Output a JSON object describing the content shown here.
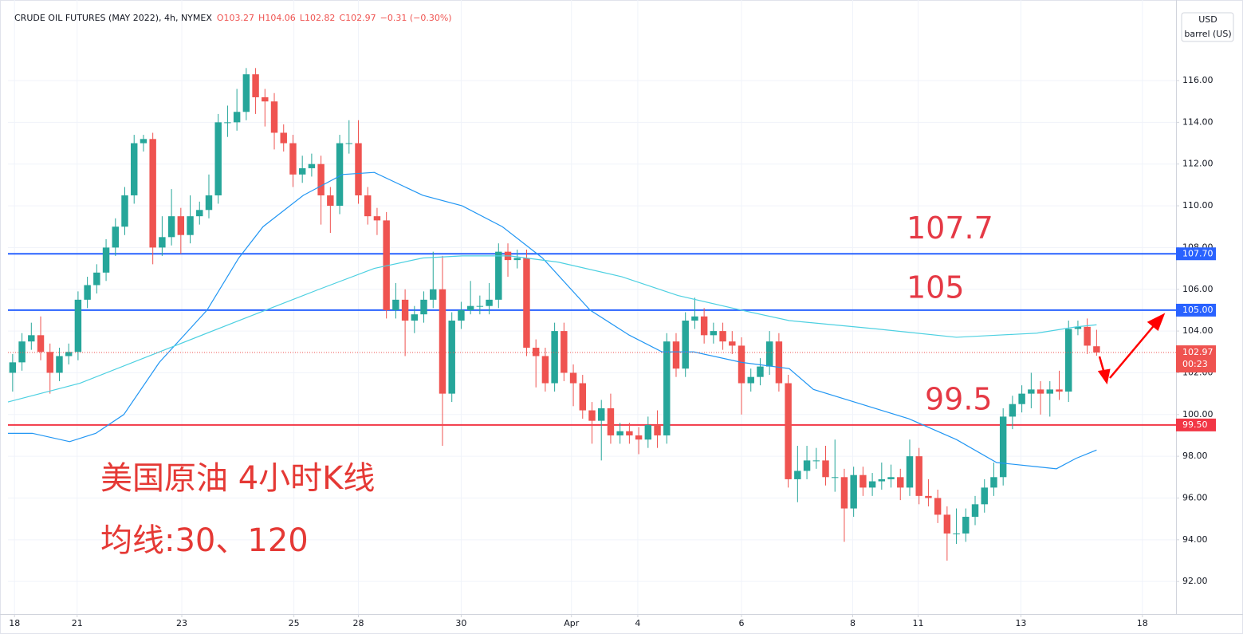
{
  "chart_data": {
    "type": "candlestick",
    "title": "CRUDE OIL FUTURES (MAY 2022), 4h, NYMEX",
    "quote": [
      "O103.27",
      "H104.06",
      "L102.82",
      "C102.97",
      "−0.31 (−0.30%)"
    ],
    "currency": "USD",
    "unit": "barrel (US)",
    "up_color": "#26a69a",
    "down_color": "#ef5350",
    "open": [
      102,
      102.5,
      103.5,
      103.8,
      103,
      102,
      102.8,
      103,
      105.5,
      106.2,
      106.8,
      108,
      109,
      110.5,
      113,
      113.2,
      108,
      108.5,
      109.5,
      108.6,
      109.5,
      109.8,
      110.5,
      114,
      114,
      114.5,
      116.3,
      115.2,
      115,
      113.5,
      113,
      111.5,
      111.8,
      112,
      110.5,
      110,
      113,
      113,
      110.5,
      109.5,
      109.3,
      105,
      105.5,
      104.5,
      104.8,
      105.5,
      106,
      101,
      104.5,
      105,
      105.2,
      105.2,
      105.5,
      107.8,
      107.4,
      107.5,
      103.2,
      102.8,
      101.5,
      104,
      102,
      101.5,
      100.2,
      99.7,
      100.3,
      99,
      99.2,
      99,
      98.8,
      99.5,
      99,
      103.5,
      102.2,
      104.5,
      104.7,
      103.8,
      104,
      103.5,
      103.3,
      101.5,
      101.8,
      102.3,
      103.5,
      101.5,
      96.9,
      97.3,
      97.8,
      97.8,
      97,
      97,
      95.5,
      97.1,
      96.5,
      96.8,
      96.9,
      97,
      96.5,
      98,
      96.1,
      96,
      95.2,
      94.3,
      94.3,
      95.1,
      95.7,
      96.5,
      97,
      99.9,
      100.5,
      101,
      101.2,
      101,
      101.2,
      101.1,
      104.1,
      104.2,
      103.27
    ],
    "high": [
      102.9,
      103.9,
      104.4,
      104.7,
      103.4,
      103.2,
      103.4,
      105.9,
      106.6,
      107.2,
      108.4,
      109.4,
      110.9,
      113.4,
      113.4,
      113.5,
      109.5,
      110.8,
      109.9,
      110.5,
      110.2,
      111.5,
      114.4,
      114.8,
      115.6,
      116.6,
      116.6,
      115.6,
      115.4,
      113.9,
      113.4,
      112.4,
      112.5,
      112.4,
      110.9,
      113.4,
      114.1,
      114.1,
      110.9,
      109.9,
      109.7,
      106.3,
      106.0,
      105.2,
      105.9,
      107.8,
      107.6,
      104.9,
      105.4,
      106.4,
      105.7,
      106.3,
      108.2,
      108.2,
      107.9,
      107.9,
      103.6,
      103.2,
      104.4,
      104.4,
      102.4,
      101.9,
      100.6,
      100.7,
      101.0,
      99.6,
      99.6,
      99.4,
      99.9,
      100.2,
      103.9,
      103.9,
      104.9,
      105.6,
      105.1,
      104.4,
      104.4,
      104.0,
      103.7,
      102.2,
      102.7,
      104.0,
      103.9,
      101.9,
      98.5,
      98.5,
      98.4,
      98.5,
      98.8,
      97.4,
      97.5,
      97.5,
      97.2,
      97.7,
      97.6,
      97.4,
      98.8,
      98.4,
      96.9,
      96.4,
      95.6,
      95.5,
      95.5,
      96.1,
      96.9,
      97.7,
      100.3,
      100.9,
      101.4,
      102.0,
      101.6,
      101.6,
      102.1,
      104.5,
      104.5,
      104.6,
      104.06
    ],
    "low": [
      101.1,
      102.1,
      103.1,
      102.6,
      101.0,
      101.6,
      102.4,
      102.6,
      105.1,
      105.8,
      106.4,
      107.6,
      108.6,
      110.1,
      112.6,
      107.2,
      107.6,
      108.1,
      107.7,
      108.2,
      109.1,
      109.4,
      110.1,
      113.3,
      113.6,
      114.1,
      114.4,
      113.8,
      112.7,
      112.6,
      110.9,
      111.1,
      111.4,
      109.1,
      108.7,
      109.6,
      112.5,
      110.1,
      109.1,
      108.6,
      104.6,
      104.6,
      102.8,
      103.9,
      104.4,
      105.1,
      98.5,
      100.6,
      104.1,
      104.8,
      104.8,
      104.8,
      105.1,
      106.6,
      107.0,
      102.8,
      101.3,
      101.1,
      101.1,
      101.6,
      100.4,
      99.8,
      98.6,
      97.8,
      98.6,
      98.6,
      98.6,
      98.1,
      98.4,
      98.4,
      98.6,
      101.8,
      101.8,
      104.1,
      103.4,
      103.4,
      103.1,
      102.9,
      100.0,
      101.1,
      101.4,
      101.9,
      101.1,
      96.5,
      95.8,
      96.9,
      97.4,
      96.6,
      96.3,
      93.9,
      95.1,
      96.1,
      96.1,
      96.4,
      96.5,
      95.9,
      96.1,
      95.7,
      95.6,
      94.8,
      93.0,
      93.8,
      93.9,
      94.7,
      95.3,
      96.1,
      96.6,
      99.3,
      100.1,
      100.3,
      100.0,
      99.9,
      100.7,
      100.6,
      103.8,
      102.9,
      102.82
    ],
    "close": [
      102.5,
      103.5,
      103.8,
      103,
      102,
      102.8,
      103,
      105.5,
      106.2,
      106.8,
      108,
      109,
      110.5,
      113,
      113.2,
      108,
      108.5,
      109.5,
      108.6,
      109.5,
      109.8,
      110.5,
      114,
      114,
      114.5,
      116.3,
      115.2,
      115,
      113.5,
      113,
      111.5,
      111.8,
      112,
      110.5,
      110,
      113,
      113,
      110.5,
      109.5,
      109.3,
      105,
      105.5,
      104.5,
      104.8,
      105.5,
      106,
      101,
      104.5,
      105,
      105.2,
      105.2,
      105.5,
      107.8,
      107.4,
      107.5,
      103.2,
      102.8,
      101.5,
      104,
      102,
      101.5,
      100.2,
      99.7,
      100.3,
      99,
      99.2,
      99,
      98.8,
      99.5,
      99,
      103.5,
      102.2,
      104.5,
      104.7,
      103.8,
      104,
      103.5,
      103.3,
      101.5,
      101.8,
      102.3,
      103.5,
      101.5,
      96.9,
      97.3,
      97.8,
      97.8,
      97,
      97,
      95.5,
      97.1,
      96.5,
      96.8,
      96.9,
      97,
      96.5,
      98,
      96.1,
      96,
      95.2,
      94.3,
      94.3,
      95.1,
      95.7,
      96.5,
      97,
      99.9,
      100.5,
      101,
      101.2,
      101,
      101.2,
      101.1,
      104.1,
      104.2,
      103.3,
      102.97
    ],
    "series": [
      {
        "name": "MA30",
        "color": "#2196f3",
        "x": [
          0.5,
          3.1,
          7.1,
          9.9,
          12.9,
          16.7,
          21.8,
          25.2,
          27.8,
          32.1,
          36.3,
          39.7,
          44.9,
          49.1,
          53.4,
          57.7,
          62.8,
          67.0,
          70.5,
          73.9,
          79.0,
          84.1,
          86.7,
          91.8,
          96.9,
          102.0,
          106.3,
          110.6,
          112.7,
          114.8,
          117
        ],
        "values": [
          99.1,
          99.1,
          98.7,
          99.1,
          100,
          102.5,
          105,
          107.5,
          109,
          110.5,
          111.5,
          111.6,
          110.5,
          110,
          109,
          107.5,
          105,
          103.8,
          103,
          103,
          102.5,
          102.2,
          101.2,
          100.5,
          99.8,
          98.8,
          97.7,
          97.5,
          97.4,
          97.9,
          98.3
        ]
      },
      {
        "name": "MA120",
        "color": "#4dd0e1",
        "x": [
          0.5,
          8.2,
          16.7,
          25.2,
          33.8,
          39.7,
          44.9,
          49.1,
          54.2,
          59.4,
          66.2,
          72.2,
          79.0,
          84.1,
          93.5,
          102.0,
          106.3,
          110.6,
          114.8,
          117
        ],
        "values": [
          100.6,
          101.5,
          103,
          104.5,
          106,
          107,
          107.5,
          107.6,
          107.6,
          107.3,
          106.6,
          105.7,
          105,
          104.5,
          104.1,
          103.7,
          103.8,
          103.9,
          104.2,
          104.3
        ]
      }
    ],
    "levels": [
      {
        "value": 107.7,
        "label": "107.70",
        "color": "#2962ff",
        "annotation": "107.7"
      },
      {
        "value": 105,
        "label": "105.00",
        "color": "#2962ff",
        "annotation": "105"
      },
      {
        "value": 99.5,
        "label": "99.50",
        "color": "#f23645",
        "annotation": "99.5"
      }
    ],
    "last": {
      "value": 102.97,
      "label": "102.97",
      "countdown": "00:23",
      "color": "#ef5350"
    },
    "notes": [
      "美国原油 4小时K线",
      "均线:30、120"
    ],
    "xlim": [
      0.5,
      125.5
    ],
    "ylim": [
      90.44,
      119.86
    ],
    "yticks": [
      {
        "value": 92,
        "label": "92.00"
      },
      {
        "value": 94,
        "label": "94.00"
      },
      {
        "value": 96,
        "label": "96.00"
      },
      {
        "value": 98,
        "label": "98.00"
      },
      {
        "value": 100,
        "label": "100.00"
      },
      {
        "value": 102,
        "label": "102.00"
      },
      {
        "value": 104,
        "label": "104.00"
      },
      {
        "value": 106,
        "label": "106.00"
      },
      {
        "value": 108,
        "label": "108.00"
      },
      {
        "value": 110,
        "label": "110.00"
      },
      {
        "value": 112,
        "label": "112.00"
      },
      {
        "value": 114,
        "label": "114.00"
      },
      {
        "value": 116,
        "label": "116.00"
      }
    ],
    "xticks": [
      {
        "value": 1.2,
        "label": "18"
      },
      {
        "value": 7.9,
        "label": "21"
      },
      {
        "value": 19.1,
        "label": "23"
      },
      {
        "value": 31.1,
        "label": "25"
      },
      {
        "value": 38.0,
        "label": "28"
      },
      {
        "value": 49.0,
        "label": "30"
      },
      {
        "value": 60.8,
        "label": "Apr"
      },
      {
        "value": 67.9,
        "label": "4"
      },
      {
        "value": 79.0,
        "label": "6"
      },
      {
        "value": 90.9,
        "label": "8"
      },
      {
        "value": 97.9,
        "label": "11"
      },
      {
        "value": 108.9,
        "label": "13"
      },
      {
        "value": 121.9,
        "label": "18"
      }
    ],
    "grid": true
  }
}
